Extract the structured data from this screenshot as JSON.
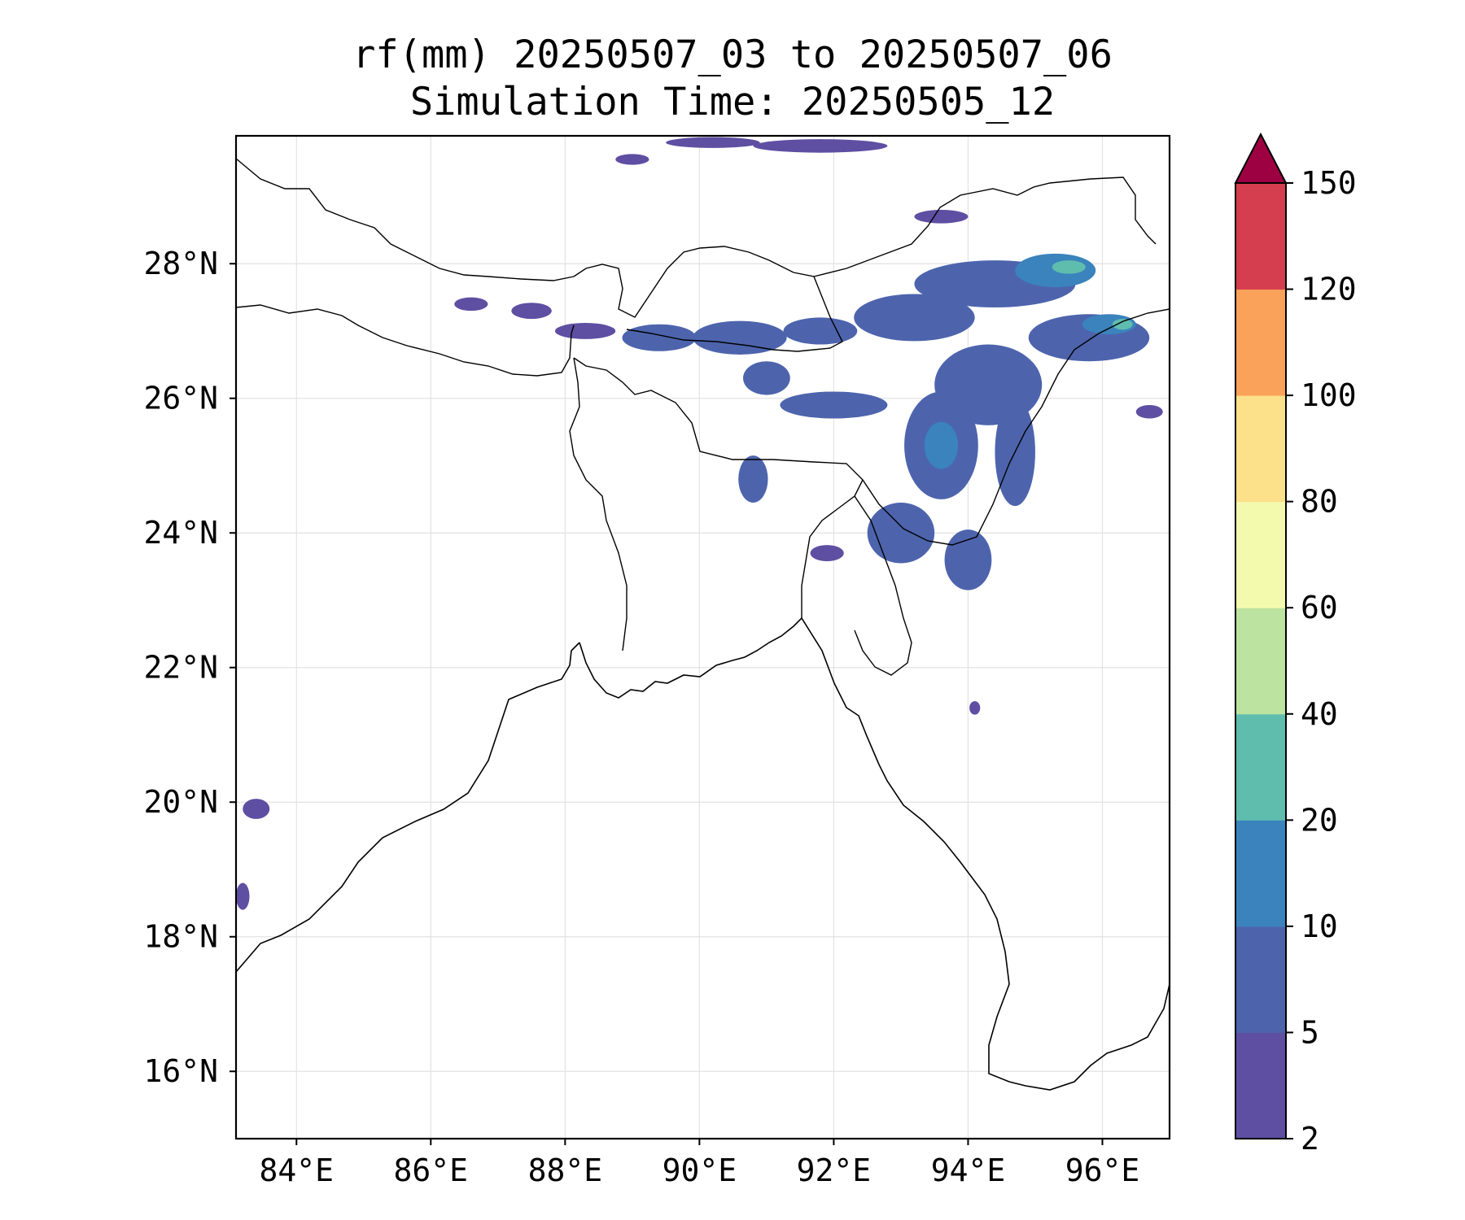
{
  "title": {
    "line1": "rf(mm) 20250507_03 to 20250507_06",
    "line2": "Simulation Time: 20250505_12"
  },
  "map": {
    "lon_range": [
      83.1,
      97.0
    ],
    "lat_range": [
      15.0,
      29.9
    ],
    "lon_ticks": [
      84,
      86,
      88,
      90,
      92,
      94,
      96
    ],
    "lon_tick_labels": [
      "84°E",
      "86°E",
      "88°E",
      "90°E",
      "92°E",
      "94°E",
      "96°E"
    ],
    "lat_ticks": [
      16,
      18,
      20,
      22,
      24,
      26,
      28
    ],
    "lat_tick_labels": [
      "16°N",
      "18°N",
      "20°N",
      "22°N",
      "24°N",
      "26°N",
      "28°N"
    ],
    "gridlines": true,
    "region": "Bay of Bengal / Northeast India / Bangladesh / Myanmar"
  },
  "colorbar": {
    "levels": [
      2,
      5,
      10,
      20,
      40,
      60,
      80,
      100,
      120,
      150
    ],
    "labels": [
      "2",
      "5",
      "10",
      "20",
      "40",
      "60",
      "80",
      "100",
      "120",
      "150"
    ],
    "colors": [
      "#5e4fa2",
      "#4d64ad",
      "#3a83bc",
      "#5fbdae",
      "#bde3a0",
      "#f3faae",
      "#fce08a",
      "#fba25a",
      "#d53e4f"
    ],
    "extend_color": "#9e0142",
    "extend": "max"
  },
  "rain_cells": [
    {
      "lon": 86.6,
      "lat": 27.4,
      "rlon": 0.25,
      "rlat": 0.1,
      "level": 0
    },
    {
      "lon": 87.5,
      "lat": 27.3,
      "rlon": 0.3,
      "rlat": 0.12,
      "level": 0
    },
    {
      "lon": 88.3,
      "lat": 27.0,
      "rlon": 0.45,
      "rlat": 0.12,
      "level": 0
    },
    {
      "lon": 89.4,
      "lat": 26.9,
      "rlon": 0.55,
      "rlat": 0.2,
      "level": 1
    },
    {
      "lon": 90.6,
      "lat": 26.9,
      "rlon": 0.7,
      "rlat": 0.25,
      "level": 1
    },
    {
      "lon": 91.8,
      "lat": 27.0,
      "rlon": 0.55,
      "rlat": 0.2,
      "level": 1
    },
    {
      "lon": 93.2,
      "lat": 27.2,
      "rlon": 0.9,
      "rlat": 0.35,
      "level": 1
    },
    {
      "lon": 94.4,
      "lat": 27.7,
      "rlon": 1.2,
      "rlat": 0.35,
      "level": 1
    },
    {
      "lon": 95.3,
      "lat": 27.9,
      "rlon": 0.6,
      "rlat": 0.25,
      "level": 2
    },
    {
      "lon": 95.5,
      "lat": 27.95,
      "rlon": 0.25,
      "rlat": 0.1,
      "level": 3
    },
    {
      "lon": 95.8,
      "lat": 26.9,
      "rlon": 0.9,
      "rlat": 0.35,
      "level": 1
    },
    {
      "lon": 96.1,
      "lat": 27.1,
      "rlon": 0.4,
      "rlat": 0.15,
      "level": 2
    },
    {
      "lon": 96.3,
      "lat": 27.1,
      "rlon": 0.15,
      "rlat": 0.08,
      "level": 3
    },
    {
      "lon": 94.3,
      "lat": 26.2,
      "rlon": 0.8,
      "rlat": 0.6,
      "level": 1
    },
    {
      "lon": 93.6,
      "lat": 25.3,
      "rlon": 0.55,
      "rlat": 0.8,
      "level": 1
    },
    {
      "lon": 93.6,
      "lat": 25.3,
      "rlon": 0.25,
      "rlat": 0.35,
      "level": 2
    },
    {
      "lon": 94.7,
      "lat": 25.2,
      "rlon": 0.3,
      "rlat": 0.8,
      "level": 1
    },
    {
      "lon": 92.0,
      "lat": 25.9,
      "rlon": 0.8,
      "rlat": 0.2,
      "level": 1
    },
    {
      "lon": 91.0,
      "lat": 26.3,
      "rlon": 0.35,
      "rlat": 0.25,
      "level": 1
    },
    {
      "lon": 90.8,
      "lat": 24.8,
      "rlon": 0.22,
      "rlat": 0.35,
      "level": 1
    },
    {
      "lon": 93.0,
      "lat": 24.0,
      "rlon": 0.5,
      "rlat": 0.45,
      "level": 1
    },
    {
      "lon": 94.0,
      "lat": 23.6,
      "rlon": 0.35,
      "rlat": 0.45,
      "level": 1
    },
    {
      "lon": 91.9,
      "lat": 23.7,
      "rlon": 0.25,
      "rlat": 0.12,
      "level": 0
    },
    {
      "lon": 90.2,
      "lat": 29.8,
      "rlon": 0.7,
      "rlat": 0.08,
      "level": 0
    },
    {
      "lon": 91.8,
      "lat": 29.75,
      "rlon": 1.0,
      "rlat": 0.1,
      "level": 0
    },
    {
      "lon": 89.0,
      "lat": 29.55,
      "rlon": 0.25,
      "rlat": 0.08,
      "level": 0
    },
    {
      "lon": 93.6,
      "lat": 28.7,
      "rlon": 0.4,
      "rlat": 0.1,
      "level": 0
    },
    {
      "lon": 83.4,
      "lat": 19.9,
      "rlon": 0.2,
      "rlat": 0.15,
      "level": 0
    },
    {
      "lon": 83.2,
      "lat": 18.6,
      "rlon": 0.1,
      "rlat": 0.2,
      "level": 0
    },
    {
      "lon": 94.1,
      "lat": 21.4,
      "rlon": 0.08,
      "rlat": 0.1,
      "level": 0
    },
    {
      "lon": 96.7,
      "lat": 25.8,
      "rlon": 0.2,
      "rlat": 0.1,
      "level": 0
    }
  ]
}
